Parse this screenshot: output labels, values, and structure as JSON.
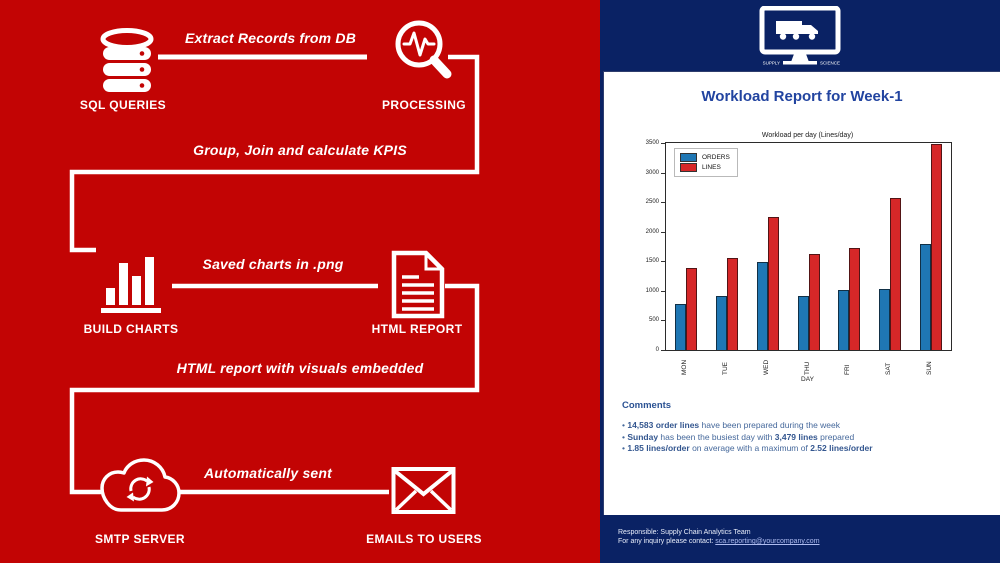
{
  "colors": {
    "accent_red": "#c20404",
    "navy": "#0a2264",
    "title_blue": "#2244a0",
    "orders_blue": "#1f77b4",
    "lines_red": "#d62728"
  },
  "pipeline": {
    "captions": {
      "extract": "Extract Records from DB",
      "group_join": "Group, Join and calculate KPIS",
      "saved_charts": "Saved charts in .png",
      "html_visuals": "HTML report with visuals embedded",
      "auto_sent": "Automatically sent"
    },
    "nodes": {
      "sql_queries": "SQL QUERIES",
      "processing": "PROCESSING",
      "build_charts": "BUILD CHARTS",
      "html_report": "HTML REPORT",
      "smtp_server": "SMTP SERVER",
      "emails_to_users": "EMAILS TO USERS"
    }
  },
  "report": {
    "logo": {
      "left_text": "SUPPLY",
      "right_text": "SCIENCE"
    },
    "title": "Workload Report for Week-1",
    "comments": {
      "heading": "Comments",
      "bullet_char": "•",
      "bullets": [
        [
          {
            "t": "14,583 order lines",
            "b": true
          },
          {
            "t": " have been prepared during the week",
            "b": false
          }
        ],
        [
          {
            "t": "Sunday",
            "b": true
          },
          {
            "t": " has been the busiest day with ",
            "b": false
          },
          {
            "t": "3,479 lines",
            "b": true
          },
          {
            "t": " prepared",
            "b": false
          }
        ],
        [
          {
            "t": "1.85 lines/order",
            "b": true
          },
          {
            "t": " on average with a maximum of ",
            "b": false
          },
          {
            "t": "2.52 lines/order",
            "b": true
          }
        ]
      ]
    },
    "footer": {
      "responsible": "Responsible: Supply Chain Analytics Team",
      "contact_prefix": "For any inquiry please contact: ",
      "contact_email": "sca.reporting@yourcompany.com"
    }
  },
  "chart_data": {
    "type": "bar",
    "title": "Workload per day (Lines/day)",
    "xlabel": "DAY",
    "ylabel": "",
    "categories": [
      "MON",
      "TUE",
      "WED",
      "THU",
      "FRI",
      "SAT",
      "SUN"
    ],
    "series": [
      {
        "name": "ORDERS",
        "color": "#1f77b4",
        "values": [
          775,
          910,
          1480,
          910,
          1020,
          1025,
          1795
        ]
      },
      {
        "name": "LINES",
        "color": "#d62728",
        "values": [
          1380,
          1550,
          2250,
          1620,
          1730,
          2575,
          3479
        ]
      }
    ],
    "ylim": [
      0,
      3500
    ],
    "yticks": [
      0,
      500,
      1000,
      1500,
      2000,
      2500,
      3000,
      3500
    ],
    "grid": false,
    "legend_position": "upper left"
  }
}
